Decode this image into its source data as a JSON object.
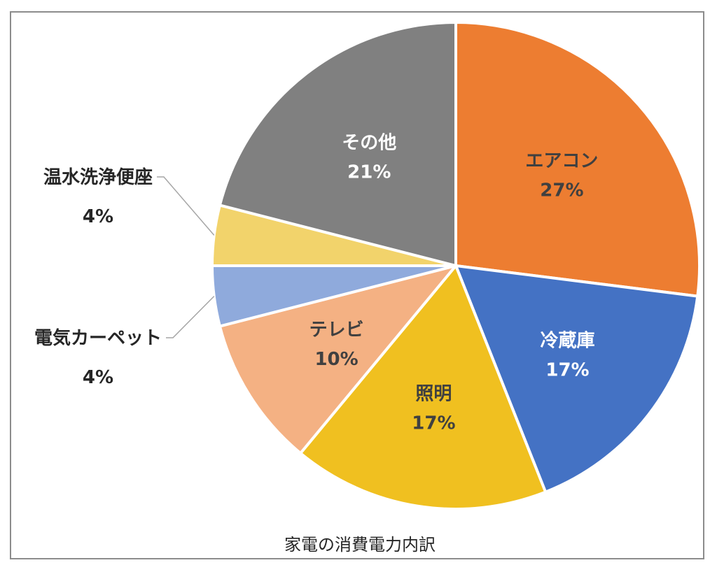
{
  "chart_data": {
    "type": "pie",
    "title": "家電の消費電力内訳",
    "start_angle_deg": 0,
    "direction": "clockwise",
    "slices": [
      {
        "label": "エアコン",
        "value": 27,
        "display": "27%",
        "color": "#ED7D31",
        "text_color": "#404040",
        "label_position": "inside"
      },
      {
        "label": "冷蔵庫",
        "value": 17,
        "display": "17%",
        "color": "#4472C4",
        "text_color": "#FFFFFF",
        "label_position": "inside"
      },
      {
        "label": "照明",
        "value": 17,
        "display": "17%",
        "color": "#F0C020",
        "text_color": "#404040",
        "label_position": "inside"
      },
      {
        "label": "テレビ",
        "value": 10,
        "display": "10%",
        "color": "#F4B183",
        "text_color": "#404040",
        "label_position": "inside"
      },
      {
        "label": "電気カーペット",
        "value": 4,
        "display": "4%",
        "color": "#8FAADC",
        "text_color": "#262626",
        "label_position": "outside-left"
      },
      {
        "label": "温水洗浄便座",
        "value": 4,
        "display": "4%",
        "color": "#F2D36B",
        "text_color": "#262626",
        "label_position": "outside-left"
      },
      {
        "label": "その他",
        "value": 21,
        "display": "21%",
        "color": "#808080",
        "text_color": "#FFFFFF",
        "label_position": "inside"
      }
    ]
  }
}
